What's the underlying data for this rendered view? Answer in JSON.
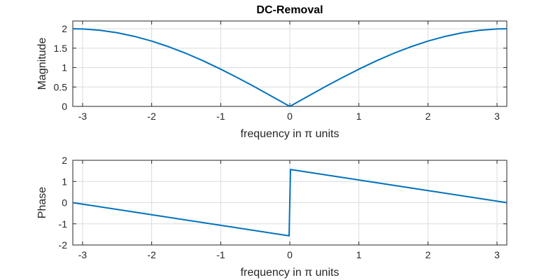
{
  "title": "DC-Removal",
  "chart_data": [
    {
      "type": "line",
      "xlabel": "frequency in π units",
      "ylabel": "Magnitude",
      "xlim": [
        -3.1416,
        3.1416
      ],
      "ylim": [
        0,
        2.2
      ],
      "xticks": [
        -3,
        -2,
        -1,
        0,
        1,
        2,
        3
      ],
      "xtick_labels": [
        "-3",
        "-2",
        "-1",
        "0",
        "1",
        "2",
        "3"
      ],
      "yticks": [
        0,
        0.5,
        1,
        1.5,
        2
      ],
      "ytick_labels": [
        "0",
        "0.5",
        "1",
        "1.5",
        "2"
      ],
      "grid": true,
      "color": "#0072bd",
      "x": [
        -3.1416,
        -3,
        -2.75,
        -2.5,
        -2.25,
        -2,
        -1.75,
        -1.5,
        -1.25,
        -1,
        -0.75,
        -0.5,
        -0.25,
        0,
        0.25,
        0.5,
        0.75,
        1,
        1.25,
        1.5,
        1.75,
        2,
        2.25,
        2.5,
        2.75,
        3,
        3.1416
      ],
      "y": [
        2,
        1.995,
        1.962,
        1.898,
        1.804,
        1.683,
        1.535,
        1.364,
        1.171,
        0.959,
        0.732,
        0.495,
        0.249,
        0,
        0.249,
        0.495,
        0.732,
        0.959,
        1.171,
        1.364,
        1.535,
        1.683,
        1.804,
        1.898,
        1.962,
        1.995,
        2
      ]
    },
    {
      "type": "line",
      "xlabel": "frequency in π units",
      "ylabel": "Phase",
      "xlim": [
        -3.1416,
        3.1416
      ],
      "ylim": [
        -2,
        2
      ],
      "xticks": [
        -3,
        -2,
        -1,
        0,
        1,
        2,
        3
      ],
      "xtick_labels": [
        "-3",
        "-2",
        "-1",
        "0",
        "1",
        "2",
        "3"
      ],
      "yticks": [
        -2,
        -1,
        0,
        1,
        2
      ],
      "ytick_labels": [
        "-2",
        "-1",
        "0",
        "1",
        "2"
      ],
      "grid": true,
      "color": "#0072bd",
      "x": [
        -3.1416,
        -2,
        -1,
        -0.01,
        0.01,
        1,
        2,
        3.1416
      ],
      "y": [
        0,
        -0.5708,
        -1.0708,
        -1.5658,
        1.5658,
        1.0708,
        0.5708,
        0
      ]
    }
  ]
}
